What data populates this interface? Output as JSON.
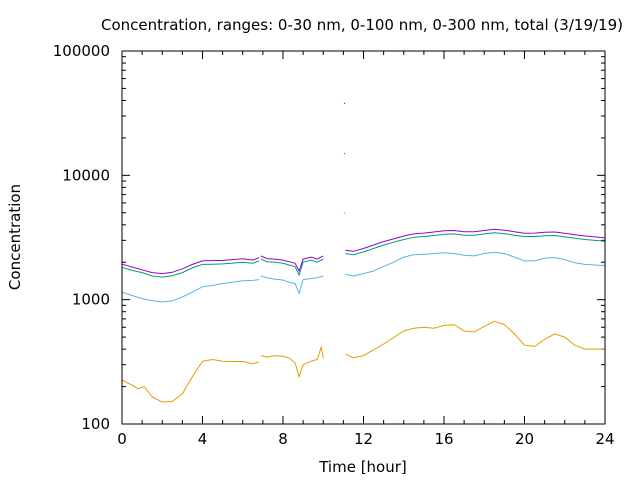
{
  "chart_data": {
    "type": "line",
    "title": "Concentration, ranges: 0-30 nm, 0-100 nm, 0-300 nm, total (3/19/19)",
    "xlabel": "Time [hour]",
    "ylabel": "Concentration",
    "xlim": [
      0,
      24
    ],
    "ylim": [
      100,
      100000
    ],
    "yscale": "log",
    "grid": false,
    "legend": "none",
    "xticks": [
      0,
      4,
      8,
      12,
      16,
      20,
      24
    ],
    "xtick_labels": [
      "0",
      "4",
      "8",
      "12",
      "16",
      "20",
      "24"
    ],
    "yticks": [
      100,
      1000,
      10000,
      100000
    ],
    "ytick_labels": [
      "100",
      "1000",
      "10000",
      "100000"
    ],
    "series": [
      {
        "color": "#e69f00",
        "segments": [
          [
            [
              0,
              225
            ],
            [
              0.5,
              205
            ],
            [
              0.8,
              192
            ],
            [
              1.1,
              200
            ],
            [
              1.5,
              165
            ],
            [
              2,
              150
            ],
            [
              2.5,
              152
            ],
            [
              3,
              175
            ],
            [
              3.5,
              240
            ],
            [
              4,
              320
            ],
            [
              4.5,
              330
            ],
            [
              5,
              320
            ],
            [
              5.5,
              318
            ],
            [
              6,
              318
            ],
            [
              6.5,
              305
            ],
            [
              6.8,
              315
            ]
          ],
          [
            [
              6.9,
              355
            ],
            [
              7.2,
              345
            ],
            [
              7.6,
              355
            ],
            [
              8,
              350
            ],
            [
              8.3,
              340
            ],
            [
              8.6,
              310
            ],
            [
              8.8,
              240
            ],
            [
              9,
              300
            ],
            [
              9.4,
              320
            ],
            [
              9.7,
              330
            ],
            [
              9.9,
              415
            ],
            [
              10,
              340
            ]
          ],
          [
            [
              11.1,
              365
            ],
            [
              11.5,
              340
            ],
            [
              12,
              355
            ],
            [
              12.5,
              395
            ],
            [
              13,
              440
            ],
            [
              14,
              560
            ],
            [
              14.5,
              590
            ],
            [
              15,
              600
            ],
            [
              15.5,
              590
            ],
            [
              16,
              620
            ],
            [
              16.5,
              630
            ],
            [
              17,
              560
            ],
            [
              17.5,
              550
            ],
            [
              18,
              610
            ],
            [
              18.5,
              670
            ],
            [
              19,
              630
            ],
            [
              19.5,
              530
            ],
            [
              20,
              430
            ],
            [
              20.5,
              420
            ],
            [
              21,
              480
            ],
            [
              21.5,
              530
            ],
            [
              22,
              500
            ],
            [
              22.5,
              430
            ],
            [
              23,
              400
            ],
            [
              24,
              400
            ]
          ]
        ]
      },
      {
        "color": "#56b4e9",
        "segments": [
          [
            [
              0,
              1150
            ],
            [
              0.5,
              1080
            ],
            [
              1,
              1020
            ],
            [
              1.5,
              980
            ],
            [
              2,
              960
            ],
            [
              2.5,
              980
            ],
            [
              3,
              1050
            ],
            [
              3.5,
              1150
            ],
            [
              4,
              1270
            ],
            [
              4.5,
              1300
            ],
            [
              5,
              1350
            ],
            [
              5.5,
              1380
            ],
            [
              6,
              1420
            ],
            [
              6.5,
              1430
            ],
            [
              6.8,
              1450
            ]
          ],
          [
            [
              6.9,
              1550
            ],
            [
              7.2,
              1500
            ],
            [
              7.6,
              1460
            ],
            [
              8,
              1440
            ],
            [
              8.3,
              1380
            ],
            [
              8.6,
              1350
            ],
            [
              8.8,
              1120
            ],
            [
              9,
              1450
            ],
            [
              9.4,
              1480
            ],
            [
              9.7,
              1500
            ],
            [
              10,
              1550
            ]
          ],
          [
            [
              11.1,
              1600
            ],
            [
              11.5,
              1550
            ],
            [
              12,
              1620
            ],
            [
              12.5,
              1700
            ],
            [
              13,
              1850
            ],
            [
              13.5,
              2000
            ],
            [
              14,
              2200
            ],
            [
              14.5,
              2300
            ],
            [
              15,
              2320
            ],
            [
              15.5,
              2350
            ],
            [
              16,
              2380
            ],
            [
              16.5,
              2350
            ],
            [
              17,
              2280
            ],
            [
              17.5,
              2250
            ],
            [
              18,
              2350
            ],
            [
              18.5,
              2400
            ],
            [
              19,
              2350
            ],
            [
              19.5,
              2200
            ],
            [
              20,
              2050
            ],
            [
              20.5,
              2050
            ],
            [
              21,
              2150
            ],
            [
              21.5,
              2180
            ],
            [
              22,
              2100
            ],
            [
              22.5,
              1980
            ],
            [
              23,
              1920
            ],
            [
              24,
              1880
            ]
          ]
        ]
      },
      {
        "color": "#009e73",
        "segments": [
          [
            [
              0,
              1820
            ],
            [
              0.5,
              1720
            ],
            [
              1,
              1650
            ],
            [
              1.5,
              1550
            ],
            [
              2,
              1520
            ],
            [
              2.5,
              1560
            ],
            [
              3,
              1650
            ],
            [
              3.5,
              1800
            ],
            [
              4,
              1920
            ],
            [
              4.5,
              1930
            ],
            [
              5,
              1940
            ],
            [
              5.5,
              1970
            ],
            [
              6,
              2000
            ],
            [
              6.5,
              1960
            ],
            [
              6.8,
              2050
            ]
          ],
          [
            [
              6.9,
              2120
            ],
            [
              7.2,
              2020
            ],
            [
              7.6,
              2000
            ],
            [
              8,
              1960
            ],
            [
              8.3,
              1900
            ],
            [
              8.6,
              1840
            ],
            [
              8.8,
              1580
            ],
            [
              9,
              2000
            ],
            [
              9.4,
              2080
            ],
            [
              9.7,
              2000
            ],
            [
              10,
              2120
            ]
          ],
          [
            [
              11.1,
              2350
            ],
            [
              11.5,
              2300
            ],
            [
              12,
              2420
            ],
            [
              12.5,
              2580
            ],
            [
              13,
              2750
            ],
            [
              13.5,
              2900
            ],
            [
              14,
              3050
            ],
            [
              14.5,
              3180
            ],
            [
              15,
              3220
            ],
            [
              15.5,
              3280
            ],
            [
              16,
              3350
            ],
            [
              16.5,
              3380
            ],
            [
              17,
              3300
            ],
            [
              17.5,
              3300
            ],
            [
              18,
              3380
            ],
            [
              18.5,
              3450
            ],
            [
              19,
              3400
            ],
            [
              19.5,
              3300
            ],
            [
              20,
              3220
            ],
            [
              20.5,
              3220
            ],
            [
              21,
              3270
            ],
            [
              21.5,
              3280
            ],
            [
              22,
              3200
            ],
            [
              22.5,
              3120
            ],
            [
              23,
              3050
            ],
            [
              24,
              2950
            ]
          ]
        ]
      },
      {
        "color": "#9400d3",
        "segments": [
          [
            [
              0,
              1930
            ],
            [
              0.5,
              1830
            ],
            [
              1,
              1740
            ],
            [
              1.5,
              1650
            ],
            [
              2,
              1620
            ],
            [
              2.5,
              1660
            ],
            [
              3,
              1770
            ],
            [
              3.5,
              1920
            ],
            [
              4,
              2050
            ],
            [
              4.5,
              2060
            ],
            [
              5,
              2070
            ],
            [
              5.5,
              2100
            ],
            [
              6,
              2130
            ],
            [
              6.5,
              2080
            ],
            [
              6.8,
              2180
            ]
          ],
          [
            [
              6.9,
              2250
            ],
            [
              7.2,
              2140
            ],
            [
              7.6,
              2120
            ],
            [
              8,
              2080
            ],
            [
              8.3,
              2020
            ],
            [
              8.6,
              1960
            ],
            [
              8.8,
              1700
            ],
            [
              9,
              2120
            ],
            [
              9.4,
              2200
            ],
            [
              9.7,
              2120
            ],
            [
              10,
              2250
            ]
          ],
          [
            [
              11.1,
              2500
            ],
            [
              11.5,
              2450
            ],
            [
              12,
              2580
            ],
            [
              12.5,
              2750
            ],
            [
              13,
              2930
            ],
            [
              13.5,
              3080
            ],
            [
              14,
              3250
            ],
            [
              14.5,
              3380
            ],
            [
              15,
              3430
            ],
            [
              15.5,
              3500
            ],
            [
              16,
              3580
            ],
            [
              16.5,
              3600
            ],
            [
              17,
              3520
            ],
            [
              17.5,
              3520
            ],
            [
              18,
              3600
            ],
            [
              18.5,
              3680
            ],
            [
              19,
              3620
            ],
            [
              19.5,
              3520
            ],
            [
              20,
              3420
            ],
            [
              20.5,
              3430
            ],
            [
              21,
              3480
            ],
            [
              21.5,
              3500
            ],
            [
              22,
              3420
            ],
            [
              22.5,
              3330
            ],
            [
              23,
              3250
            ],
            [
              24,
              3150
            ]
          ]
        ]
      }
    ],
    "scatter_points": [
      {
        "x": 11.05,
        "y": 38000,
        "color": "#9400d3"
      },
      {
        "x": 11.05,
        "y": 15000,
        "color": "#009e73"
      },
      {
        "x": 11.05,
        "y": 5000,
        "color": "#56b4e9"
      }
    ]
  }
}
